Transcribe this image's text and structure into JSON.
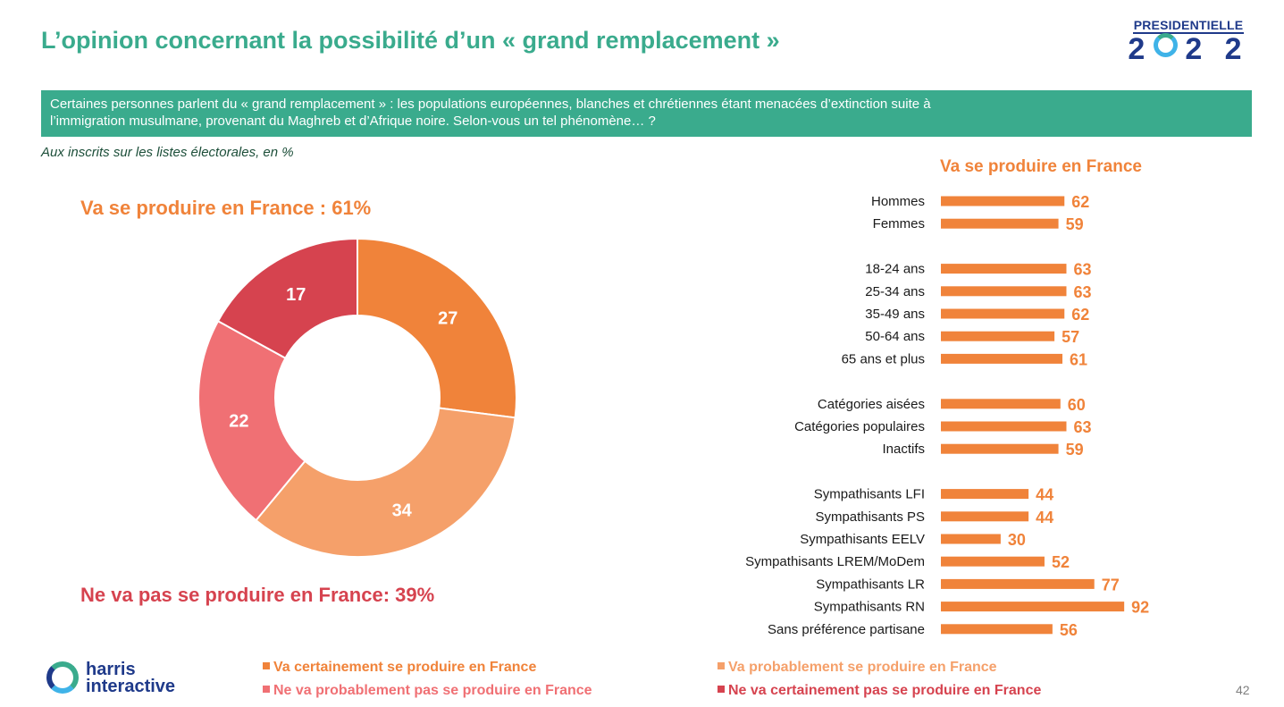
{
  "header": {
    "title": "L’opinion concernant la possibilité d’un « grand remplacement »",
    "logo_word": "PRESIDENTIELLE",
    "logo_year_left": "2",
    "logo_year_right": "2 2"
  },
  "question": {
    "line1": "Certaines personnes parlent du « grand remplacement » : les populations européennes, blanches et chrétiennes étant menacées d’extinction suite à",
    "line2": "l’immigration musulmane, provenant du Maghreb et d’Afrique noire. Selon-vous un tel phénomène… ?"
  },
  "subtitle": "Aux inscrits sur les listes électorales, en %",
  "donut_labels": {
    "top": "Va se produire en France : 61%",
    "bottom": "Ne va pas se produire en France: 39%"
  },
  "bars_title": "Va se produire en France",
  "legend": [
    {
      "label": "Va certainement se produire en France",
      "color": "#f0833a"
    },
    {
      "label": "Va probablement se produire en France",
      "color": "#f5a06a"
    },
    {
      "label": "Ne va probablement pas se produire en France",
      "color": "#f07074"
    },
    {
      "label": "Ne va certainement pas se produire en France",
      "color": "#d6434f"
    }
  ],
  "footer": {
    "logo_line1": "harris",
    "logo_line2": "interactive",
    "page_number": "42"
  },
  "chart_data": [
    {
      "type": "pie",
      "variant": "donut",
      "slices": [
        {
          "name": "Va certainement se produire en France",
          "value": 27,
          "color": "#f0833a"
        },
        {
          "name": "Va probablement se produire en France",
          "value": 34,
          "color": "#f5a06a"
        },
        {
          "name": "Ne va probablement pas se produire en France",
          "value": 22,
          "color": "#f07074"
        },
        {
          "name": "Ne va certainement pas se produire en France",
          "value": 17,
          "color": "#d6434f"
        }
      ]
    },
    {
      "type": "bar",
      "orientation": "horizontal",
      "title": "Va se produire en France",
      "color": "#f0833a",
      "xlim": [
        0,
        100
      ],
      "groups": [
        [
          {
            "label": "Hommes",
            "value": 62
          },
          {
            "label": "Femmes",
            "value": 59
          }
        ],
        [
          {
            "label": "18-24 ans",
            "value": 63
          },
          {
            "label": "25-34 ans",
            "value": 63
          },
          {
            "label": "35-49 ans",
            "value": 62
          },
          {
            "label": "50-64 ans",
            "value": 57
          },
          {
            "label": "65 ans et plus",
            "value": 61
          }
        ],
        [
          {
            "label": "Catégories aisées",
            "value": 60
          },
          {
            "label": "Catégories populaires",
            "value": 63
          },
          {
            "label": "Inactifs",
            "value": 59
          }
        ],
        [
          {
            "label": "Sympathisants LFI",
            "value": 44
          },
          {
            "label": "Sympathisants PS",
            "value": 44
          },
          {
            "label": "Sympathisants EELV",
            "value": 30
          },
          {
            "label": "Sympathisants LREM/MoDem",
            "value": 52
          },
          {
            "label": "Sympathisants LR",
            "value": 77
          },
          {
            "label": "Sympathisants RN",
            "value": 92
          },
          {
            "label": "Sans préférence partisane",
            "value": 56
          }
        ]
      ]
    }
  ]
}
